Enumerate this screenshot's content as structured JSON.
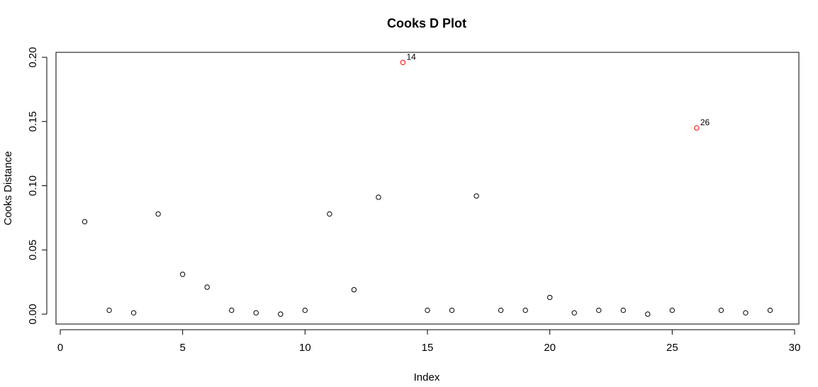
{
  "chart_data": {
    "type": "scatter",
    "title": "Cooks D Plot",
    "xlabel": "Index",
    "ylabel": "Cooks Distance",
    "xlim": [
      0,
      30
    ],
    "ylim": [
      0,
      0.2
    ],
    "xticks": [
      "0",
      "5",
      "10",
      "15",
      "20",
      "25",
      "30"
    ],
    "yticks": [
      "0.00",
      "0.05",
      "0.10",
      "0.15",
      "0.20"
    ],
    "grid": false,
    "colors": {
      "normal": "#000000",
      "highlight": "#ff0000"
    },
    "series": [
      {
        "x": [
          1,
          2,
          3,
          4,
          5,
          6,
          7,
          8,
          9,
          10,
          11,
          12,
          13,
          14,
          15,
          16,
          17,
          18,
          19,
          20,
          21,
          22,
          23,
          24,
          25,
          26,
          27,
          28,
          29
        ],
        "y": [
          0.072,
          0.003,
          0.001,
          0.078,
          0.031,
          0.021,
          0.003,
          0.001,
          0.0,
          0.003,
          0.078,
          0.019,
          0.091,
          0.196,
          0.003,
          0.003,
          0.092,
          0.003,
          0.003,
          0.013,
          0.001,
          0.003,
          0.003,
          0.0,
          0.003,
          0.145,
          0.003,
          0.001,
          0.003
        ]
      }
    ],
    "highlighted": [
      {
        "x": 14,
        "label": "14"
      },
      {
        "x": 26,
        "label": "26"
      }
    ]
  }
}
